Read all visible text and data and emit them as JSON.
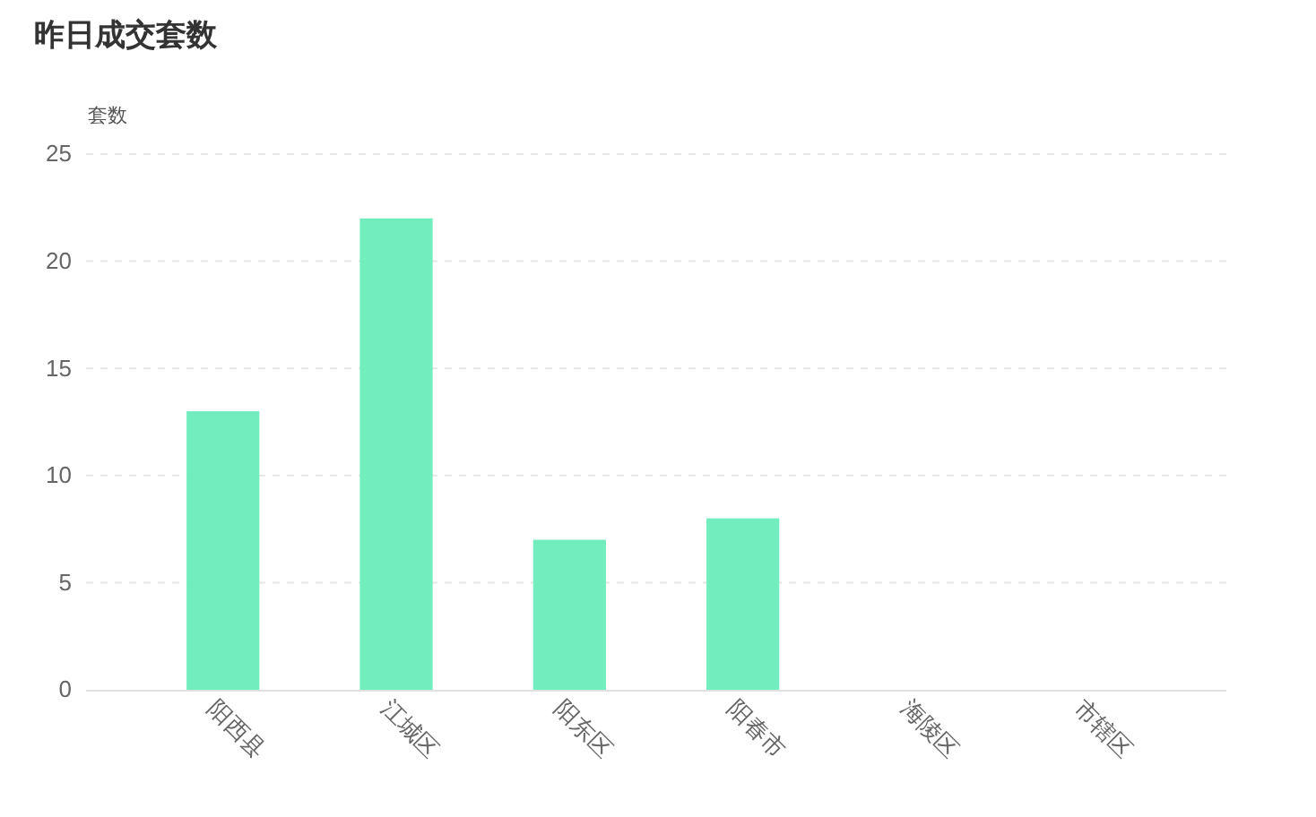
{
  "chart_data": {
    "type": "bar",
    "title": "昨日成交套数",
    "ylabel": "套数",
    "categories": [
      "阳西县",
      "江城区",
      "阳东区",
      "阳春市",
      "海陵区",
      "市辖区"
    ],
    "values": [
      13,
      22,
      7,
      8,
      0,
      0
    ],
    "color": "#72edbe",
    "ylim": [
      0,
      25
    ],
    "yticks": [
      0,
      5,
      10,
      15,
      20,
      25
    ],
    "grid": "y"
  }
}
